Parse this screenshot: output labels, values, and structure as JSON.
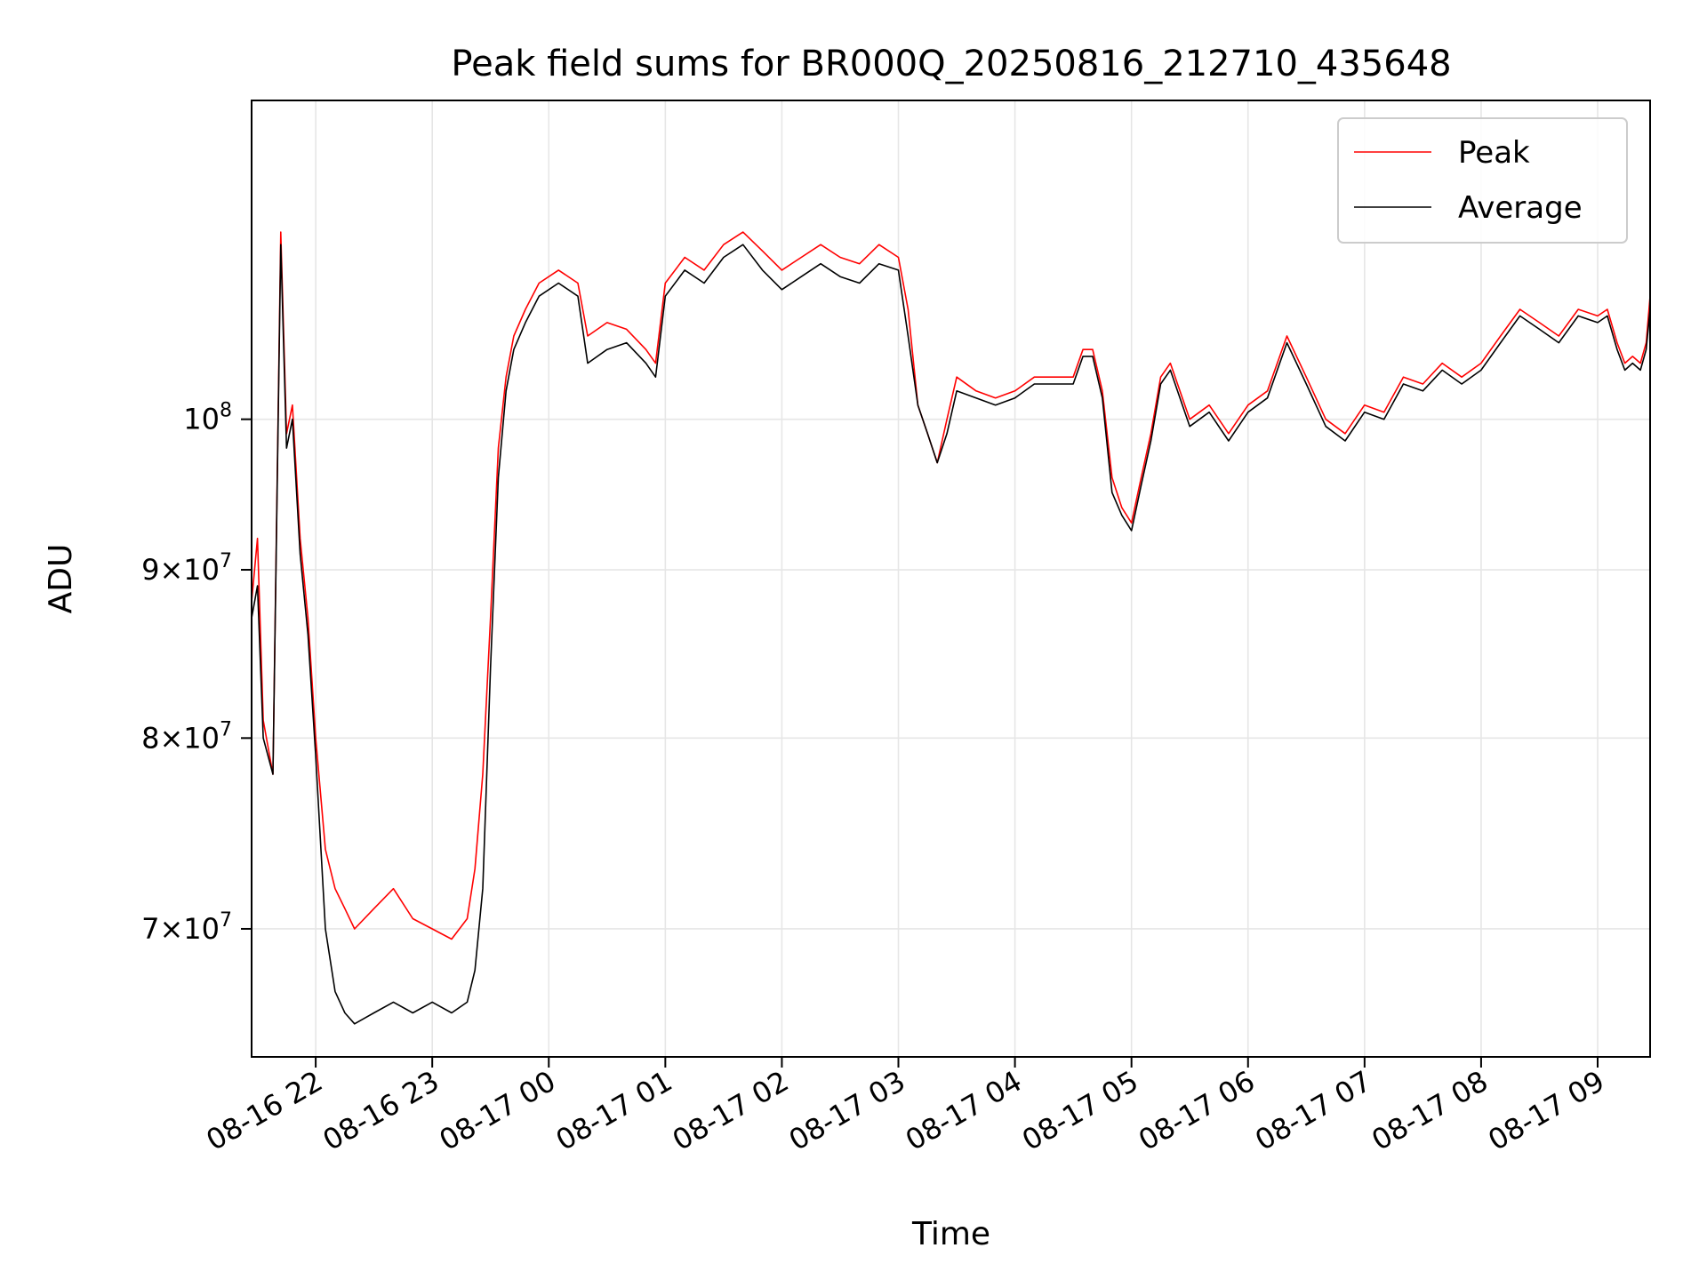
{
  "chart_data": {
    "type": "line",
    "title": "Peak field sums for BR000Q_20250816_212710_435648",
    "xlabel": "Time",
    "ylabel": "ADU",
    "y_scale": "log",
    "grid": true,
    "legend_position": "upper right",
    "xlim": [
      "2025-08-16 21:27",
      "2025-08-17 09:27"
    ],
    "ylim": [
      64000000,
      125000000
    ],
    "x_ticks": [
      {
        "value": "2025-08-16 22:00",
        "label": "08-16 22"
      },
      {
        "value": "2025-08-16 23:00",
        "label": "08-16 23"
      },
      {
        "value": "2025-08-17 00:00",
        "label": "08-17 00"
      },
      {
        "value": "2025-08-17 01:00",
        "label": "08-17 01"
      },
      {
        "value": "2025-08-17 02:00",
        "label": "08-17 02"
      },
      {
        "value": "2025-08-17 03:00",
        "label": "08-17 03"
      },
      {
        "value": "2025-08-17 04:00",
        "label": "08-17 04"
      },
      {
        "value": "2025-08-17 05:00",
        "label": "08-17 05"
      },
      {
        "value": "2025-08-17 06:00",
        "label": "08-17 06"
      },
      {
        "value": "2025-08-17 07:00",
        "label": "08-17 07"
      },
      {
        "value": "2025-08-17 08:00",
        "label": "08-17 08"
      },
      {
        "value": "2025-08-17 09:00",
        "label": "08-17 09"
      }
    ],
    "y_ticks": [
      {
        "value": 70000000,
        "mantissa": "7",
        "exp": "7"
      },
      {
        "value": 80000000,
        "mantissa": "8",
        "exp": "7"
      },
      {
        "value": 90000000,
        "mantissa": "9",
        "exp": "7"
      },
      {
        "value": 100000000,
        "mantissa": "",
        "exp": "8"
      }
    ],
    "series": [
      {
        "name": "Peak",
        "color": "#ff0000",
        "x": [
          "2025-08-16 21:27",
          "2025-08-16 21:30",
          "2025-08-16 21:33",
          "2025-08-16 21:38",
          "2025-08-16 21:42",
          "2025-08-16 21:45",
          "2025-08-16 21:48",
          "2025-08-16 21:52",
          "2025-08-16 21:56",
          "2025-08-16 22:00",
          "2025-08-16 22:05",
          "2025-08-16 22:10",
          "2025-08-16 22:15",
          "2025-08-16 22:20",
          "2025-08-16 22:30",
          "2025-08-16 22:40",
          "2025-08-16 22:50",
          "2025-08-16 23:00",
          "2025-08-16 23:10",
          "2025-08-16 23:18",
          "2025-08-16 23:22",
          "2025-08-16 23:26",
          "2025-08-16 23:30",
          "2025-08-16 23:34",
          "2025-08-16 23:38",
          "2025-08-16 23:42",
          "2025-08-16 23:48",
          "2025-08-16 23:55",
          "2025-08-17 00:05",
          "2025-08-17 00:15",
          "2025-08-17 00:20",
          "2025-08-17 00:30",
          "2025-08-17 00:40",
          "2025-08-17 00:50",
          "2025-08-17 00:55",
          "2025-08-17 01:00",
          "2025-08-17 01:10",
          "2025-08-17 01:20",
          "2025-08-17 01:30",
          "2025-08-17 01:40",
          "2025-08-17 01:50",
          "2025-08-17 02:00",
          "2025-08-17 02:10",
          "2025-08-17 02:20",
          "2025-08-17 02:30",
          "2025-08-17 02:40",
          "2025-08-17 02:50",
          "2025-08-17 03:00",
          "2025-08-17 03:05",
          "2025-08-17 03:10",
          "2025-08-17 03:15",
          "2025-08-17 03:20",
          "2025-08-17 03:25",
          "2025-08-17 03:30",
          "2025-08-17 03:40",
          "2025-08-17 03:50",
          "2025-08-17 04:00",
          "2025-08-17 04:10",
          "2025-08-17 04:20",
          "2025-08-17 04:30",
          "2025-08-17 04:35",
          "2025-08-17 04:40",
          "2025-08-17 04:45",
          "2025-08-17 04:50",
          "2025-08-17 04:55",
          "2025-08-17 05:00",
          "2025-08-17 05:05",
          "2025-08-17 05:10",
          "2025-08-17 05:15",
          "2025-08-17 05:20",
          "2025-08-17 05:30",
          "2025-08-17 05:40",
          "2025-08-17 05:50",
          "2025-08-17 06:00",
          "2025-08-17 06:10",
          "2025-08-17 06:20",
          "2025-08-17 06:30",
          "2025-08-17 06:40",
          "2025-08-17 06:50",
          "2025-08-17 07:00",
          "2025-08-17 07:10",
          "2025-08-17 07:20",
          "2025-08-17 07:30",
          "2025-08-17 07:40",
          "2025-08-17 07:50",
          "2025-08-17 08:00",
          "2025-08-17 08:10",
          "2025-08-17 08:20",
          "2025-08-17 08:30",
          "2025-08-17 08:40",
          "2025-08-17 08:50",
          "2025-08-17 09:00",
          "2025-08-17 09:05",
          "2025-08-17 09:10",
          "2025-08-17 09:14",
          "2025-08-17 09:18",
          "2025-08-17 09:22",
          "2025-08-17 09:25",
          "2025-08-17 09:27"
        ],
        "values": [
          88000000,
          92000000,
          81000000,
          78000000,
          114000000,
          99000000,
          101000000,
          92000000,
          87000000,
          80000000,
          74000000,
          72000000,
          71000000,
          70000000,
          71000000,
          72000000,
          70500000,
          70000000,
          69500000,
          70500000,
          73000000,
          78000000,
          87000000,
          98000000,
          103000000,
          106000000,
          108000000,
          110000000,
          111000000,
          110000000,
          106000000,
          107000000,
          106500000,
          105000000,
          104000000,
          110000000,
          112000000,
          111000000,
          113000000,
          114000000,
          112500000,
          111000000,
          112000000,
          113000000,
          112000000,
          111500000,
          113000000,
          112000000,
          108000000,
          101000000,
          99000000,
          97000000,
          100000000,
          103000000,
          102000000,
          101500000,
          102000000,
          103000000,
          103000000,
          103000000,
          105000000,
          105000000,
          102000000,
          96000000,
          94000000,
          93000000,
          96000000,
          99000000,
          103000000,
          104000000,
          100000000,
          101000000,
          99000000,
          101000000,
          102000000,
          106000000,
          103000000,
          100000000,
          99000000,
          101000000,
          100500000,
          103000000,
          102500000,
          104000000,
          103000000,
          104000000,
          106000000,
          108000000,
          107000000,
          106000000,
          108000000,
          107500000,
          108000000,
          105500000,
          104000000,
          104500000,
          104000000,
          105500000,
          109000000
        ]
      },
      {
        "name": "Average",
        "color": "#000000",
        "x": [
          "2025-08-16 21:27",
          "2025-08-16 21:30",
          "2025-08-16 21:33",
          "2025-08-16 21:38",
          "2025-08-16 21:42",
          "2025-08-16 21:45",
          "2025-08-16 21:48",
          "2025-08-16 21:52",
          "2025-08-16 21:56",
          "2025-08-16 22:00",
          "2025-08-16 22:05",
          "2025-08-16 22:10",
          "2025-08-16 22:15",
          "2025-08-16 22:20",
          "2025-08-16 22:30",
          "2025-08-16 22:40",
          "2025-08-16 22:50",
          "2025-08-16 23:00",
          "2025-08-16 23:10",
          "2025-08-16 23:18",
          "2025-08-16 23:22",
          "2025-08-16 23:26",
          "2025-08-16 23:30",
          "2025-08-16 23:34",
          "2025-08-16 23:38",
          "2025-08-16 23:42",
          "2025-08-16 23:48",
          "2025-08-16 23:55",
          "2025-08-17 00:05",
          "2025-08-17 00:15",
          "2025-08-17 00:20",
          "2025-08-17 00:30",
          "2025-08-17 00:40",
          "2025-08-17 00:50",
          "2025-08-17 00:55",
          "2025-08-17 01:00",
          "2025-08-17 01:10",
          "2025-08-17 01:20",
          "2025-08-17 01:30",
          "2025-08-17 01:40",
          "2025-08-17 01:50",
          "2025-08-17 02:00",
          "2025-08-17 02:10",
          "2025-08-17 02:20",
          "2025-08-17 02:30",
          "2025-08-17 02:40",
          "2025-08-17 02:50",
          "2025-08-17 03:00",
          "2025-08-17 03:05",
          "2025-08-17 03:10",
          "2025-08-17 03:15",
          "2025-08-17 03:20",
          "2025-08-17 03:25",
          "2025-08-17 03:30",
          "2025-08-17 03:40",
          "2025-08-17 03:50",
          "2025-08-17 04:00",
          "2025-08-17 04:10",
          "2025-08-17 04:20",
          "2025-08-17 04:30",
          "2025-08-17 04:35",
          "2025-08-17 04:40",
          "2025-08-17 04:45",
          "2025-08-17 04:50",
          "2025-08-17 04:55",
          "2025-08-17 05:00",
          "2025-08-17 05:05",
          "2025-08-17 05:10",
          "2025-08-17 05:15",
          "2025-08-17 05:20",
          "2025-08-17 05:30",
          "2025-08-17 05:40",
          "2025-08-17 05:50",
          "2025-08-17 06:00",
          "2025-08-17 06:10",
          "2025-08-17 06:20",
          "2025-08-17 06:30",
          "2025-08-17 06:40",
          "2025-08-17 06:50",
          "2025-08-17 07:00",
          "2025-08-17 07:10",
          "2025-08-17 07:20",
          "2025-08-17 07:30",
          "2025-08-17 07:40",
          "2025-08-17 07:50",
          "2025-08-17 08:00",
          "2025-08-17 08:10",
          "2025-08-17 08:20",
          "2025-08-17 08:30",
          "2025-08-17 08:40",
          "2025-08-17 08:50",
          "2025-08-17 09:00",
          "2025-08-17 09:05",
          "2025-08-17 09:10",
          "2025-08-17 09:14",
          "2025-08-17 09:18",
          "2025-08-17 09:22",
          "2025-08-17 09:25",
          "2025-08-17 09:27"
        ],
        "values": [
          87000000,
          89000000,
          80000000,
          78000000,
          113000000,
          98000000,
          100000000,
          91000000,
          86000000,
          79000000,
          70000000,
          67000000,
          66000000,
          65500000,
          66000000,
          66500000,
          66000000,
          66500000,
          66000000,
          66500000,
          68000000,
          72000000,
          84000000,
          96000000,
          102000000,
          105000000,
          107000000,
          109000000,
          110000000,
          109000000,
          104000000,
          105000000,
          105500000,
          104000000,
          103000000,
          109000000,
          111000000,
          110000000,
          112000000,
          113000000,
          111000000,
          109500000,
          110500000,
          111500000,
          110500000,
          110000000,
          111500000,
          111000000,
          106000000,
          101000000,
          99000000,
          97000000,
          99000000,
          102000000,
          101500000,
          101000000,
          101500000,
          102500000,
          102500000,
          102500000,
          104500000,
          104500000,
          101500000,
          95000000,
          93500000,
          92500000,
          95500000,
          98500000,
          102500000,
          103500000,
          99500000,
          100500000,
          98500000,
          100500000,
          101500000,
          105500000,
          102500000,
          99500000,
          98500000,
          100500000,
          100000000,
          102500000,
          102000000,
          103500000,
          102500000,
          103500000,
          105500000,
          107500000,
          106500000,
          105500000,
          107500000,
          107000000,
          107500000,
          105000000,
          103500000,
          104000000,
          103500000,
          105000000,
          108000000
        ]
      }
    ]
  }
}
